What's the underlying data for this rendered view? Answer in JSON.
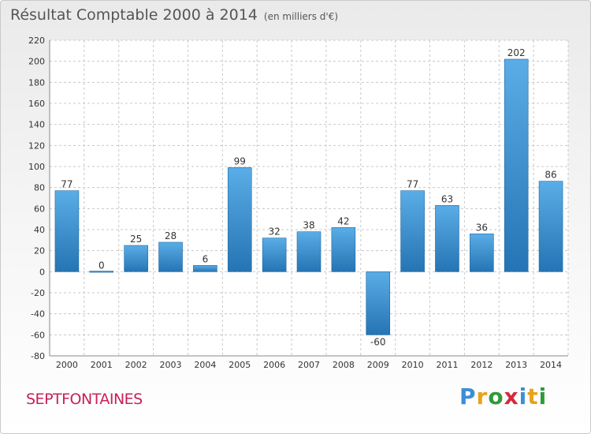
{
  "title": "Résultat Comptable 2000 à 2014",
  "unit": "(en milliers d'€)",
  "commune": "SEPTFONTAINES",
  "logo": {
    "letters": [
      "P",
      "r",
      "o",
      "x",
      "i",
      "t",
      "i"
    ],
    "colors": [
      "#3a8fd6",
      "#e8a21c",
      "#2f9a3a",
      "#d6283d",
      "#3a8fd6",
      "#e8a21c",
      "#2f9a3a"
    ]
  },
  "colors": {
    "bar_top": "#5aade6",
    "bar_bottom": "#2574b4",
    "grid": "#c8c8c8",
    "axis_text": "#333333",
    "title": "#555555",
    "commune": "#c8215a"
  },
  "chart_data": {
    "type": "bar",
    "categories": [
      "2000",
      "2001",
      "2002",
      "2003",
      "2004",
      "2005",
      "2006",
      "2007",
      "2008",
      "2009",
      "2010",
      "2011",
      "2012",
      "2013",
      "2014"
    ],
    "values": [
      77,
      0,
      25,
      28,
      6,
      99,
      32,
      38,
      42,
      -60,
      77,
      63,
      36,
      202,
      86
    ],
    "ylim": [
      -80,
      220
    ],
    "yticks": [
      -80,
      -60,
      -40,
      -20,
      0,
      20,
      40,
      60,
      80,
      100,
      120,
      140,
      160,
      180,
      200,
      220
    ],
    "grid": true,
    "xlabel": "",
    "ylabel": ""
  }
}
